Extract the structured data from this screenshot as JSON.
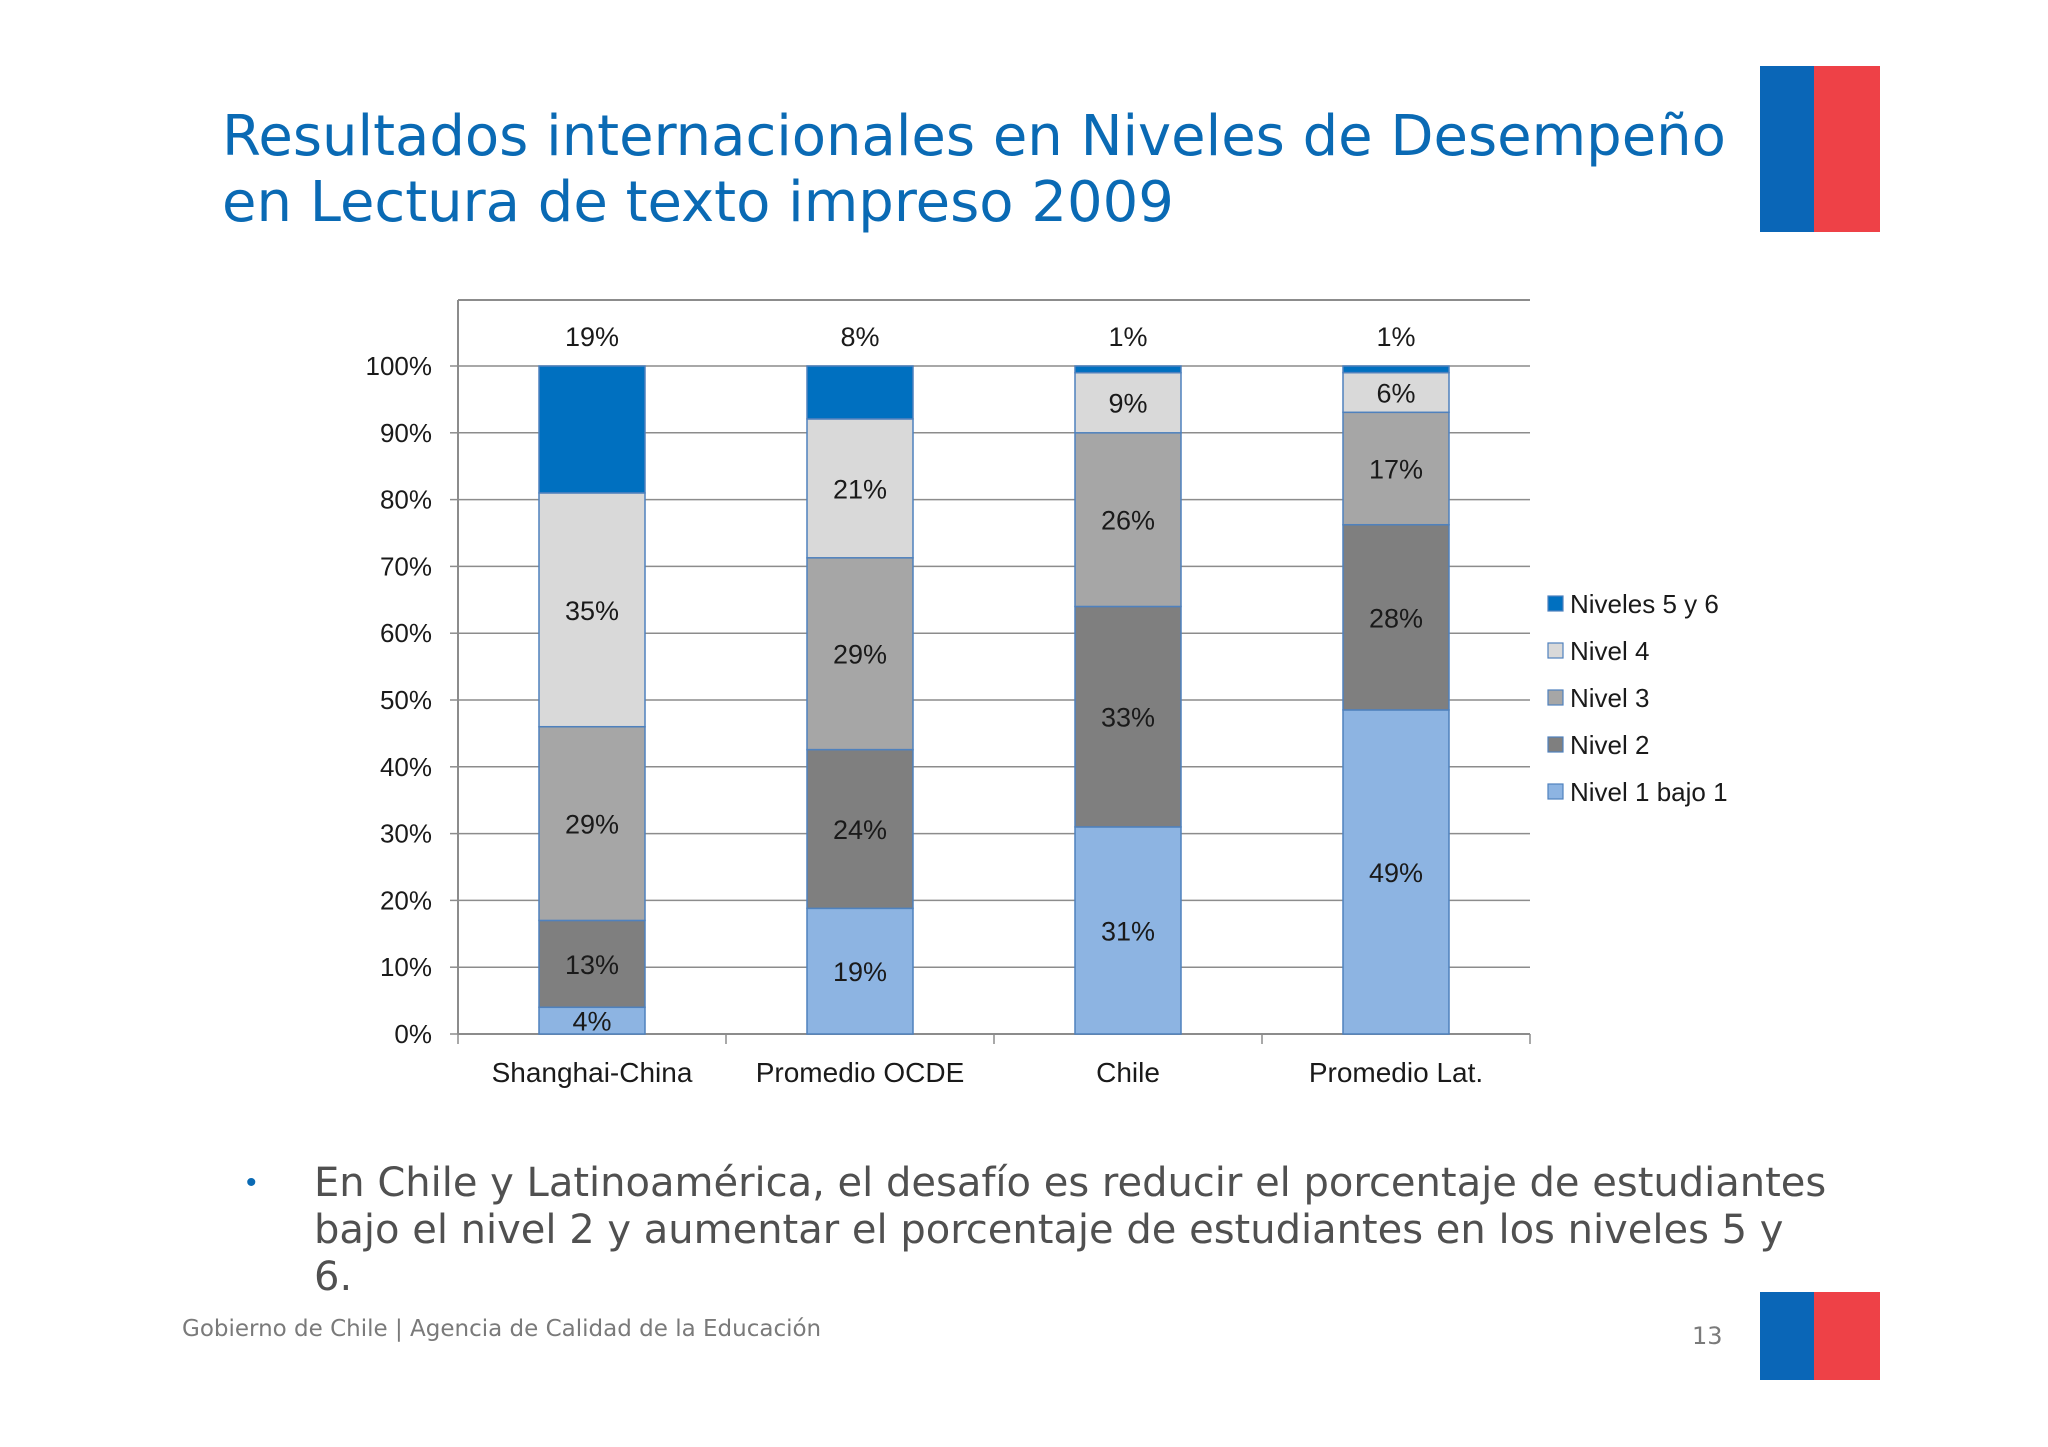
{
  "slide": {
    "title_line1": "Resultados internacionales en Niveles de Desempeño",
    "title_line2": "en Lectura de texto impreso 2009",
    "bullet_symbol": "•",
    "bullet_text": "En Chile y Latinoamérica, el desafío es reducir el porcentaje de estudiantes bajo el nivel 2 y aumentar el porcentaje de estudiantes en los niveles 5 y 6.",
    "footer": "Gobierno de Chile | Agencia de Calidad de la Educación",
    "page_number": "13",
    "flag_colors": {
      "blue": "#0a66b7",
      "red": "#ee4147"
    }
  },
  "chart_data": {
    "type": "bar",
    "stacked": true,
    "categories": [
      "Shanghai-China",
      "Promedio OCDE",
      "Chile",
      "Promedio Lat."
    ],
    "y_ticks": [
      "0%",
      "10%",
      "20%",
      "30%",
      "40%",
      "50%",
      "60%",
      "70%",
      "80%",
      "90%",
      "100%"
    ],
    "ylim": [
      0,
      100
    ],
    "grid": true,
    "legend_position": "right",
    "series": [
      {
        "name": "Nivel 1 bajo 1",
        "color": "#8db4e2",
        "values": [
          4,
          19,
          31,
          49
        ],
        "labels": [
          "4%",
          "19%",
          "31%",
          "49%"
        ]
      },
      {
        "name": "Nivel 2",
        "color": "#7f7f7f",
        "values": [
          13,
          24,
          33,
          28
        ],
        "labels": [
          "13%",
          "24%",
          "33%",
          "28%"
        ]
      },
      {
        "name": "Nivel 3",
        "color": "#a6a6a6",
        "values": [
          29,
          29,
          26,
          17
        ],
        "labels": [
          "29%",
          "29%",
          "26%",
          "17%"
        ]
      },
      {
        "name": "Nivel 4",
        "color": "#d9d9d9",
        "values": [
          35,
          21,
          9,
          6
        ],
        "labels": [
          "35%",
          "21%",
          "9%",
          "6%"
        ]
      },
      {
        "name": "Niveles 5 y 6",
        "color": "#0070c0",
        "values": [
          19,
          8,
          1,
          1
        ],
        "labels": [
          "19%",
          "8%",
          "1%",
          "1%"
        ]
      }
    ],
    "legend_order": [
      "Niveles 5 y 6",
      "Nivel 4",
      "Nivel 3",
      "Nivel 2",
      "Nivel 1 bajo 1"
    ]
  }
}
